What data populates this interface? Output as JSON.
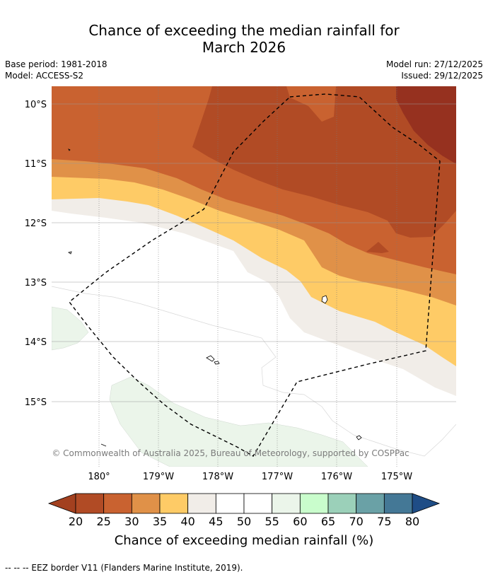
{
  "title_line1": "Chance of exceeding the median rainfall for",
  "title_line2": "March 2026",
  "base_period": "Base period: 1981-2018",
  "model": "Model: ACCESS-S2",
  "model_run": "Model run: 27/12/2025",
  "issued": "Issued: 29/12/2025",
  "copyright": "© Commonwealth of Australia 2025, Bureau of Meteorology, supported by COSPPac",
  "map": {
    "lat_labels": [
      "10°S",
      "11°S",
      "12°S",
      "13°S",
      "14°S",
      "15°S"
    ],
    "lon_labels": [
      "180°",
      "179°W",
      "178°W",
      "177°W",
      "176°W",
      "175°W"
    ]
  },
  "colorbar": {
    "label": "Chance of exceeding median rainfall (%)",
    "ticks": [
      "20",
      "25",
      "30",
      "35",
      "40",
      "45",
      "50",
      "55",
      "60",
      "65",
      "70",
      "75",
      "80"
    ],
    "colors": [
      "#a3401f",
      "#b14b25",
      "#c96230",
      "#e09148",
      "#fecb66",
      "#f1ede8",
      "#ffffff",
      "#ffffff",
      "#ebf5ea",
      "#c9fdcc",
      "#9bd0b9",
      "#6aa1a6",
      "#447896",
      "#1f4d86"
    ]
  },
  "footer": "--  --  -- EEZ border V11 (Flanders Marine Institute, 2019)."
}
